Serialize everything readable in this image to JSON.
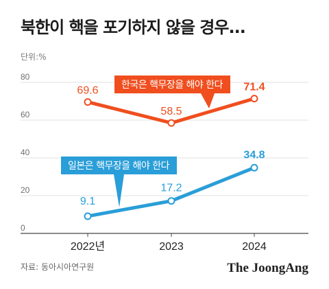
{
  "title": "북한이 핵을 포기하지 않을 경우...",
  "unit_label": "단위:%",
  "source": "자료: 동아시아연구원",
  "brand": "The JoongAng",
  "colors": {
    "korea": "#f04e1e",
    "japan": "#2a9ed8",
    "axis": "#444444",
    "grid": "#e2e2e2"
  },
  "chart_data": {
    "type": "line",
    "categories": [
      "2022년",
      "2023",
      "2024"
    ],
    "ylim": [
      0,
      80
    ],
    "yticks": [
      "0",
      "20",
      "40",
      "60",
      "80"
    ],
    "grid": true,
    "series": [
      {
        "name": "한국은 핵무장을 해야 한다",
        "values": [
          69.6,
          58.5,
          71.4
        ],
        "labels": [
          "69.6",
          "58.5",
          "71.4"
        ]
      },
      {
        "name": "일본은 핵무장을 해야 한다",
        "values": [
          9.1,
          17.2,
          34.8
        ],
        "labels": [
          "9.1",
          "17.2",
          "34.8"
        ]
      }
    ]
  }
}
